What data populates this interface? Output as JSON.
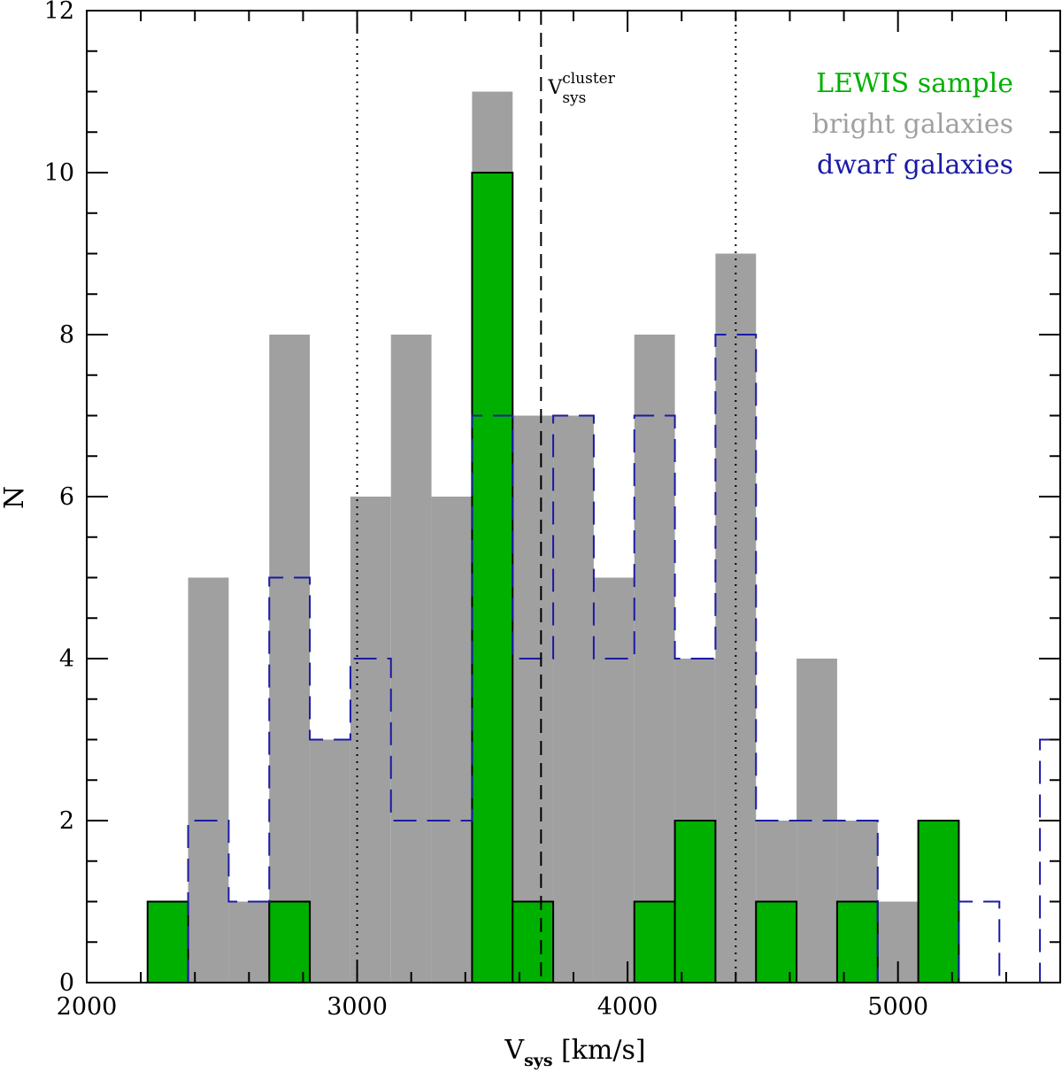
{
  "chart_data": {
    "type": "bar",
    "xlabel": {
      "main": "V",
      "sub": "sys",
      "unit": " [km/s]"
    },
    "ylabel": "N",
    "xlim": [
      2000,
      5600
    ],
    "ylim": [
      0,
      12
    ],
    "bin_width": 150,
    "x_ticks": [
      2000,
      3000,
      4000,
      5000
    ],
    "y_ticks": [
      0,
      2,
      4,
      6,
      8,
      10,
      12
    ],
    "vertical_lines": [
      {
        "x": 3000,
        "style": "dotted"
      },
      {
        "x": 3680,
        "style": "dashed",
        "annotation": {
          "main": "V",
          "sup": "cluster",
          "sub": "sys"
        }
      },
      {
        "x": 4400,
        "style": "dotted"
      }
    ],
    "series": [
      {
        "name": "bright galaxies",
        "color": "#a0a0a0",
        "style": "filled",
        "bins": [
          {
            "x0": 2375,
            "value": 5
          },
          {
            "x0": 2525,
            "value": 1
          },
          {
            "x0": 2675,
            "value": 8
          },
          {
            "x0": 2825,
            "value": 3
          },
          {
            "x0": 2975,
            "value": 6
          },
          {
            "x0": 3125,
            "value": 8
          },
          {
            "x0": 3275,
            "value": 6
          },
          {
            "x0": 3425,
            "value": 11
          },
          {
            "x0": 3575,
            "value": 7
          },
          {
            "x0": 3725,
            "value": 7
          },
          {
            "x0": 3875,
            "value": 5
          },
          {
            "x0": 4025,
            "value": 8
          },
          {
            "x0": 4175,
            "value": 4
          },
          {
            "x0": 4325,
            "value": 9
          },
          {
            "x0": 4475,
            "value": 2
          },
          {
            "x0": 4625,
            "value": 4
          },
          {
            "x0": 4775,
            "value": 2
          },
          {
            "x0": 4925,
            "value": 1
          }
        ]
      },
      {
        "name": "LEWIS sample",
        "color": "#00b000",
        "style": "filled-outlined",
        "bins": [
          {
            "x0": 2225,
            "value": 1
          },
          {
            "x0": 2675,
            "value": 1
          },
          {
            "x0": 3425,
            "value": 10
          },
          {
            "x0": 3575,
            "value": 1
          },
          {
            "x0": 4025,
            "value": 1
          },
          {
            "x0": 4175,
            "value": 2
          },
          {
            "x0": 4475,
            "value": 1
          },
          {
            "x0": 4775,
            "value": 1
          },
          {
            "x0": 5075,
            "value": 2
          }
        ]
      },
      {
        "name": "dwarf galaxies",
        "color": "#1a1aa6",
        "style": "dashed-step",
        "bins": [
          {
            "x0": 2375,
            "value": 2
          },
          {
            "x0": 2525,
            "value": 1
          },
          {
            "x0": 2675,
            "value": 5
          },
          {
            "x0": 2825,
            "value": 3
          },
          {
            "x0": 2975,
            "value": 4
          },
          {
            "x0": 3125,
            "value": 2
          },
          {
            "x0": 3275,
            "value": 2
          },
          {
            "x0": 3425,
            "value": 7
          },
          {
            "x0": 3575,
            "value": 4
          },
          {
            "x0": 3725,
            "value": 7
          },
          {
            "x0": 3875,
            "value": 4
          },
          {
            "x0": 4025,
            "value": 7
          },
          {
            "x0": 4175,
            "value": 4
          },
          {
            "x0": 4325,
            "value": 8
          },
          {
            "x0": 4475,
            "value": 2
          },
          {
            "x0": 4625,
            "value": 2
          },
          {
            "x0": 4775,
            "value": 2
          },
          {
            "x0": 4925,
            "value": 0
          },
          {
            "x0": 5075,
            "value": 0
          },
          {
            "x0": 5225,
            "value": 1
          },
          {
            "x0": 5375,
            "value": 0
          },
          {
            "x0": 5525,
            "value": 3
          }
        ]
      }
    ],
    "legend": {
      "placement": "top-right",
      "entries": [
        {
          "label": "LEWIS sample",
          "color": "#00b000"
        },
        {
          "label": "bright galaxies",
          "color": "#a0a0a0"
        },
        {
          "label": "dwarf galaxies",
          "color": "#1a1aa6"
        }
      ]
    }
  }
}
